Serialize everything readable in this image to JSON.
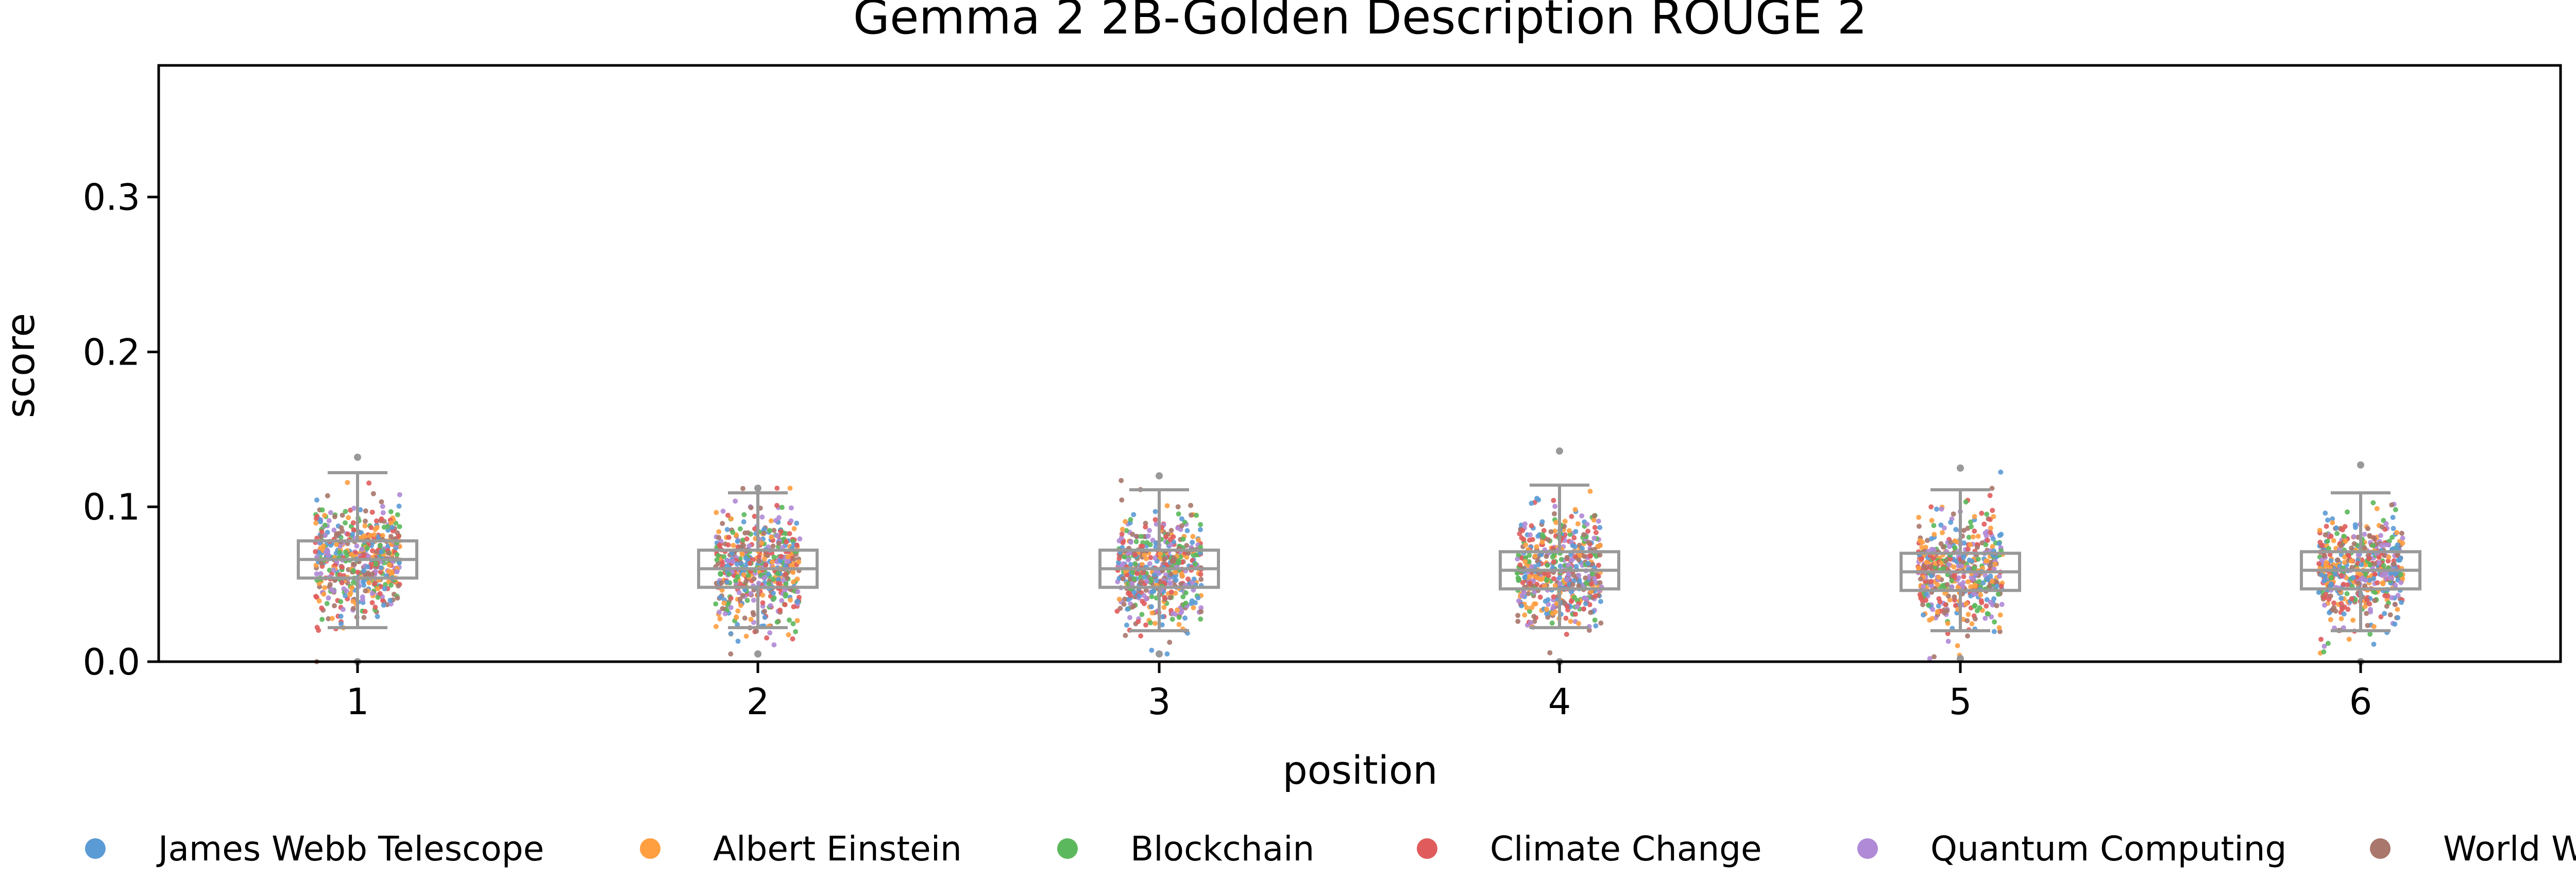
{
  "chart_data": {
    "type": "box-strip",
    "title": "Gemma 2 2B-Golden Description ROUGE 2",
    "xlabel": "position",
    "ylabel": "score",
    "ylim": [
      0,
      0.385
    ],
    "yticks": [
      "0.0",
      "0.1",
      "0.2",
      "0.3"
    ],
    "ytick_values": [
      0,
      0.1,
      0.2,
      0.3
    ],
    "categories": [
      "1",
      "2",
      "3",
      "4",
      "5",
      "6"
    ],
    "boxes": [
      {
        "position": "1",
        "q1": 0.054,
        "median": 0.066,
        "q3": 0.078,
        "whisker_low": 0.022,
        "whisker_high": 0.122
      },
      {
        "position": "2",
        "q1": 0.048,
        "median": 0.06,
        "q3": 0.072,
        "whisker_low": 0.022,
        "whisker_high": 0.109
      },
      {
        "position": "3",
        "q1": 0.048,
        "median": 0.06,
        "q3": 0.072,
        "whisker_low": 0.02,
        "whisker_high": 0.111
      },
      {
        "position": "4",
        "q1": 0.047,
        "median": 0.059,
        "q3": 0.071,
        "whisker_low": 0.022,
        "whisker_high": 0.114
      },
      {
        "position": "5",
        "q1": 0.046,
        "median": 0.058,
        "q3": 0.07,
        "whisker_low": 0.02,
        "whisker_high": 0.111
      },
      {
        "position": "6",
        "q1": 0.047,
        "median": 0.059,
        "q3": 0.071,
        "whisker_low": 0.02,
        "whisker_high": 0.109
      }
    ],
    "points_range": [
      {
        "position": "1",
        "min": 0.0,
        "max": 0.132
      },
      {
        "position": "2",
        "min": 0.005,
        "max": 0.112
      },
      {
        "position": "3",
        "min": 0.005,
        "max": 0.12
      },
      {
        "position": "4",
        "min": 0.0,
        "max": 0.136
      },
      {
        "position": "5",
        "min": 0.002,
        "max": 0.125
      },
      {
        "position": "6",
        "min": 0.0,
        "max": 0.127
      }
    ],
    "series": [
      {
        "name": "James Webb Telescope",
        "color": "#5b9bd5"
      },
      {
        "name": "Albert Einstein",
        "color": "#ff9f40"
      },
      {
        "name": "Blockchain",
        "color": "#5cb85c"
      },
      {
        "name": "Climate Change",
        "color": "#e05c5c"
      },
      {
        "name": "Quantum Computing",
        "color": "#b08ad6"
      },
      {
        "name": "World War II",
        "color": "#a9776b"
      }
    ],
    "box_color": "#999999",
    "grid": false,
    "legend_position": "bottom"
  }
}
